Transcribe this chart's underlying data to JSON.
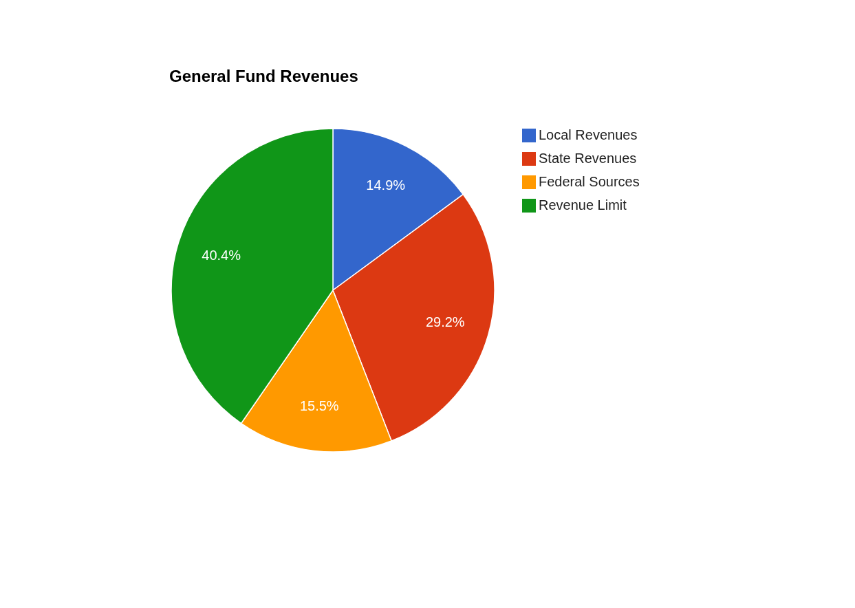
{
  "chart_data": {
    "type": "pie",
    "title": "General Fund Revenues",
    "categories": [
      "Local Revenues",
      "State Revenues",
      "Federal Sources",
      "Revenue Limit"
    ],
    "values": [
      14.9,
      29.2,
      15.5,
      40.4
    ],
    "colors": [
      "#3366cc",
      "#dc3912",
      "#ff9900",
      "#109618"
    ],
    "value_labels": [
      "14.9%",
      "29.2%",
      "15.5%",
      "40.4%"
    ],
    "legend": "right"
  }
}
